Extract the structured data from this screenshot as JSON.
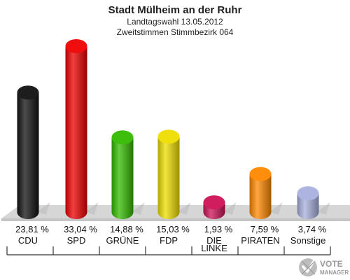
{
  "chart_data": {
    "type": "bar",
    "title": "Stadt Mülheim an der Ruhr",
    "subtitle_1": "Landtagswahl 13.05.2012",
    "subtitle_2": "Zweitstimmen Stimmbezirk 064",
    "categories": [
      "CDU",
      "SPD",
      "GRÜNE",
      "FDP",
      "DIE LINKE",
      "PIRATEN",
      "Sonstige"
    ],
    "category_lines": [
      [
        "CDU"
      ],
      [
        "SPD"
      ],
      [
        "GRÜNE"
      ],
      [
        "FDP"
      ],
      [
        "DIE",
        "LINKE"
      ],
      [
        "PIRATEN"
      ],
      [
        "Sonstige"
      ]
    ],
    "values": [
      23.81,
      33.04,
      14.88,
      15.03,
      1.93,
      7.59,
      3.74
    ],
    "value_labels": [
      "23,81 %",
      "33,04 %",
      "14,88 %",
      "15,03 %",
      "1,93 %",
      "7,59 %",
      "3,74 %"
    ],
    "colors": [
      "#111111",
      "#ee0000",
      "#33bb00",
      "#eedd00",
      "#cc1155",
      "#ff8800",
      "#a8b0dd"
    ],
    "ylim": [
      0,
      33.04
    ],
    "grid": false
  },
  "logo": {
    "line1": "VOTE",
    "line2": "MANAGER"
  }
}
